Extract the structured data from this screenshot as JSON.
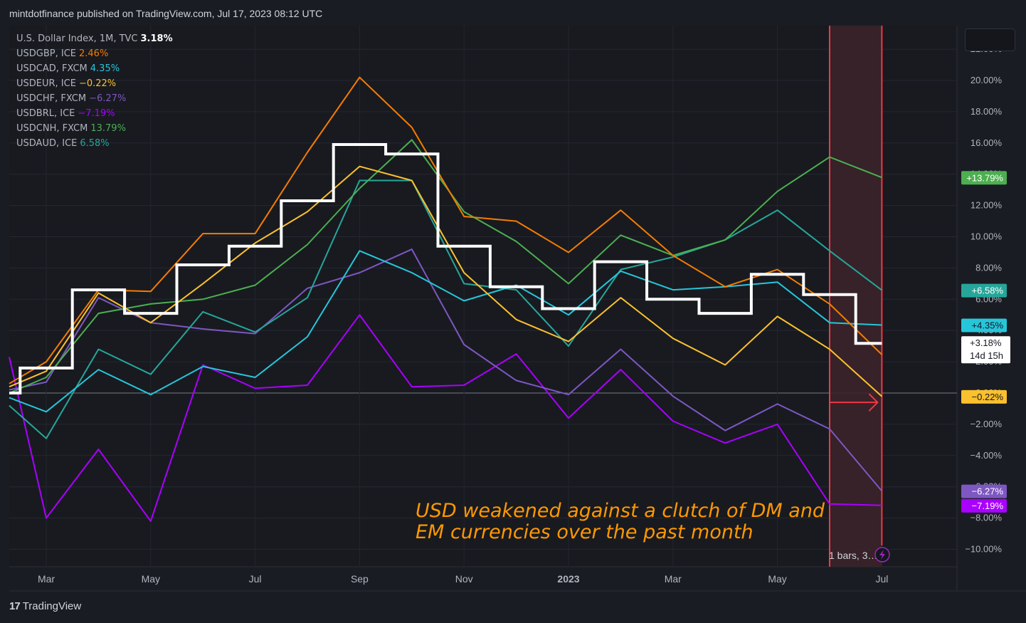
{
  "header": {
    "published_by": "mintdotfinance published on TradingView.com, Jul 17, 2023 08:12 UTC"
  },
  "footer": {
    "brand": "TradingView",
    "brand_mark": "17"
  },
  "legend": [
    {
      "name": "U.S. Dollar Index, 1M, TVC",
      "value": "3.18%",
      "color": "#ffffff"
    },
    {
      "name": "USDGBP, ICE",
      "value": "2.46%",
      "color": "#f57c00"
    },
    {
      "name": "USDCAD, FXCM",
      "value": "4.35%",
      "color": "#26c6da"
    },
    {
      "name": "USDEUR, ICE",
      "value": "−0.22%",
      "color": "#fbc02d"
    },
    {
      "name": "USDCHF, FXCM",
      "value": "−6.27%",
      "color": "#7e57c2"
    },
    {
      "name": "USDBRL, ICE",
      "value": "−7.19%",
      "color": "#aa00ff"
    },
    {
      "name": "USDCNH, FXCM",
      "value": "13.79%",
      "color": "#4caf50"
    },
    {
      "name": "USDAUD, ICE",
      "value": "6.58%",
      "color": "#26a69a"
    }
  ],
  "annotation": {
    "line1": "USD weakened against a clutch of DM and",
    "line2": "EM currencies over the past month",
    "color": "#ff9800"
  },
  "range_label": "1 bars, 3…",
  "countdown": {
    "price": "+3.18%",
    "time": "14d 15h"
  },
  "chart_data": {
    "type": "line",
    "x": [
      "2022-02",
      "2022-03",
      "2022-04",
      "2022-05",
      "2022-06",
      "2022-07",
      "2022-08",
      "2022-09",
      "2022-10",
      "2022-11",
      "2022-12",
      "2023-01",
      "2023-02",
      "2023-03",
      "2023-04",
      "2023-05",
      "2023-06",
      "2023-07"
    ],
    "xlabels": [
      "Mar",
      "May",
      "Jul",
      "Sep",
      "Nov",
      "2023",
      "Mar",
      "May",
      "Jul"
    ],
    "xlabel_months": [
      "2022-03",
      "2022-05",
      "2022-07",
      "2022-09",
      "2022-11",
      "2023-01",
      "2023-03",
      "2023-05",
      "2023-07"
    ],
    "ylim": [
      -11,
      22.5
    ],
    "yticks": [
      -10,
      -8,
      -6,
      -4,
      -2,
      0,
      2,
      4,
      6,
      8,
      10,
      12,
      14,
      16,
      18,
      20,
      22
    ],
    "ytick_labels": [
      "−10.00%",
      "−8.00%",
      "−6.00%",
      "−4.00%",
      "−2.00%",
      "0.00%",
      "2.00%",
      "4.00%",
      "6.00%",
      "8.00%",
      "10.00%",
      "12.00%",
      "14.00%",
      "16.00%",
      "18.00%",
      "20.00%",
      "22.00%"
    ],
    "series": [
      {
        "name": "USDBRL, ICE",
        "color": "#aa00ff",
        "values": [
          2.3,
          -8.0,
          -3.6,
          -8.2,
          1.8,
          0.3,
          0.5,
          5.0,
          0.4,
          0.5,
          2.5,
          -1.6,
          1.5,
          -1.8,
          -3.2,
          -2.0,
          -7.1,
          -7.19
        ]
      },
      {
        "name": "USDCHF, FXCM",
        "color": "#7e57c2",
        "values": [
          0.2,
          0.7,
          6.1,
          4.5,
          4.1,
          3.8,
          6.7,
          7.7,
          9.2,
          3.1,
          0.8,
          -0.1,
          2.8,
          -0.2,
          -2.4,
          -0.7,
          -2.3,
          -6.27
        ]
      },
      {
        "name": "USDAUD, ICE",
        "color": "#26a69a",
        "values": [
          -0.8,
          -2.9,
          2.8,
          1.2,
          5.2,
          3.9,
          6.1,
          13.6,
          13.6,
          7.0,
          6.6,
          3.0,
          7.9,
          8.7,
          9.8,
          11.7,
          9.1,
          6.58
        ]
      },
      {
        "name": "USDCAD, FXCM",
        "color": "#26c6da",
        "values": [
          -0.3,
          -1.2,
          1.5,
          -0.1,
          1.7,
          1.0,
          3.6,
          9.1,
          7.7,
          5.9,
          6.9,
          5.0,
          7.8,
          6.6,
          6.8,
          7.1,
          4.5,
          4.35
        ]
      },
      {
        "name": "USDCNH, FXCM",
        "color": "#4caf50",
        "values": [
          0.0,
          1.0,
          5.1,
          5.7,
          6.0,
          6.9,
          9.5,
          13.1,
          16.2,
          11.6,
          9.7,
          7.0,
          10.1,
          8.8,
          9.8,
          12.9,
          15.1,
          13.79
        ]
      },
      {
        "name": "USDEUR, ICE",
        "color": "#fbc02d",
        "values": [
          0.4,
          1.4,
          6.4,
          4.5,
          7.0,
          9.6,
          11.6,
          14.5,
          13.6,
          7.7,
          4.7,
          3.3,
          6.1,
          3.5,
          1.8,
          4.9,
          2.8,
          -0.22
        ]
      },
      {
        "name": "USDGBP, ICE",
        "color": "#f57c00",
        "values": [
          0.6,
          2.0,
          6.6,
          6.5,
          10.2,
          10.2,
          15.4,
          20.2,
          17.0,
          11.3,
          11.0,
          9.0,
          11.7,
          8.8,
          6.8,
          7.9,
          5.7,
          2.46
        ]
      },
      {
        "name": "U.S. Dollar Index, 1M, TVC",
        "color": "#ffffff",
        "step": true,
        "values": [
          0.0,
          1.6,
          6.6,
          5.1,
          8.2,
          9.4,
          12.3,
          15.9,
          15.3,
          9.4,
          6.8,
          5.4,
          8.4,
          6.0,
          5.1,
          7.6,
          6.3,
          3.18
        ]
      }
    ],
    "price_labels": [
      {
        "text": "+13.79%",
        "value": 13.79,
        "bg": "#4caf50",
        "fg": "#ffffff"
      },
      {
        "text": "+6.58%",
        "value": 6.58,
        "bg": "#26a69a",
        "fg": "#ffffff"
      },
      {
        "text": "+4.35%",
        "value": 4.35,
        "bg": "#26c6da",
        "fg": "#131722"
      },
      {
        "text": "+2.46%",
        "value": 2.46,
        "bg": "#f57c00",
        "fg": "#ffffff"
      },
      {
        "text": "−0.22%",
        "value": -0.22,
        "bg": "#fbc02d",
        "fg": "#131722"
      },
      {
        "text": "−6.27%",
        "value": -6.27,
        "bg": "#7e57c2",
        "fg": "#ffffff"
      },
      {
        "text": "−7.19%",
        "value": -7.19,
        "bg": "#aa00ff",
        "fg": "#ffffff"
      }
    ],
    "highlight_range": {
      "from": "2023-06",
      "to": "2023-07",
      "arrow_value": -0.6
    }
  }
}
